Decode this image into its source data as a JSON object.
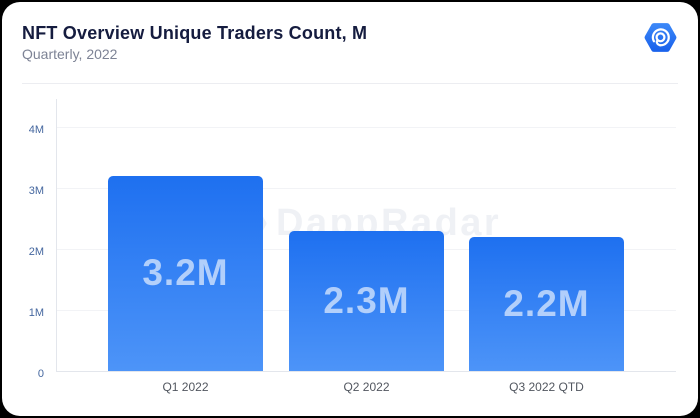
{
  "header": {
    "title": "NFT Overview Unique Traders Count, M",
    "subtitle": "Quarterly, 2022"
  },
  "logo": {
    "name": "dappradar-logo",
    "color_top": "#3a86f7",
    "color_bottom": "#1b63ec"
  },
  "watermark": "DappRadar",
  "chart_data": {
    "type": "bar",
    "categories": [
      "Q1 2022",
      "Q2 2022",
      "Q3 2022 QTD"
    ],
    "values": [
      3.2,
      2.3,
      2.2
    ],
    "value_labels": [
      "3.2M",
      "2.3M",
      "2.2M"
    ],
    "title": "NFT Overview Unique Traders Count, M",
    "xlabel": "",
    "ylabel": "",
    "yticks": [
      0,
      1,
      2,
      3,
      4
    ],
    "ytick_labels": [
      "0",
      "1M",
      "2M",
      "3M",
      "4M"
    ],
    "ylim": [
      0,
      4.45
    ],
    "grid": "horizontal",
    "bar_color_top": "#1e70f0",
    "bar_color_bottom": "#4d94f8",
    "legend": "none"
  }
}
